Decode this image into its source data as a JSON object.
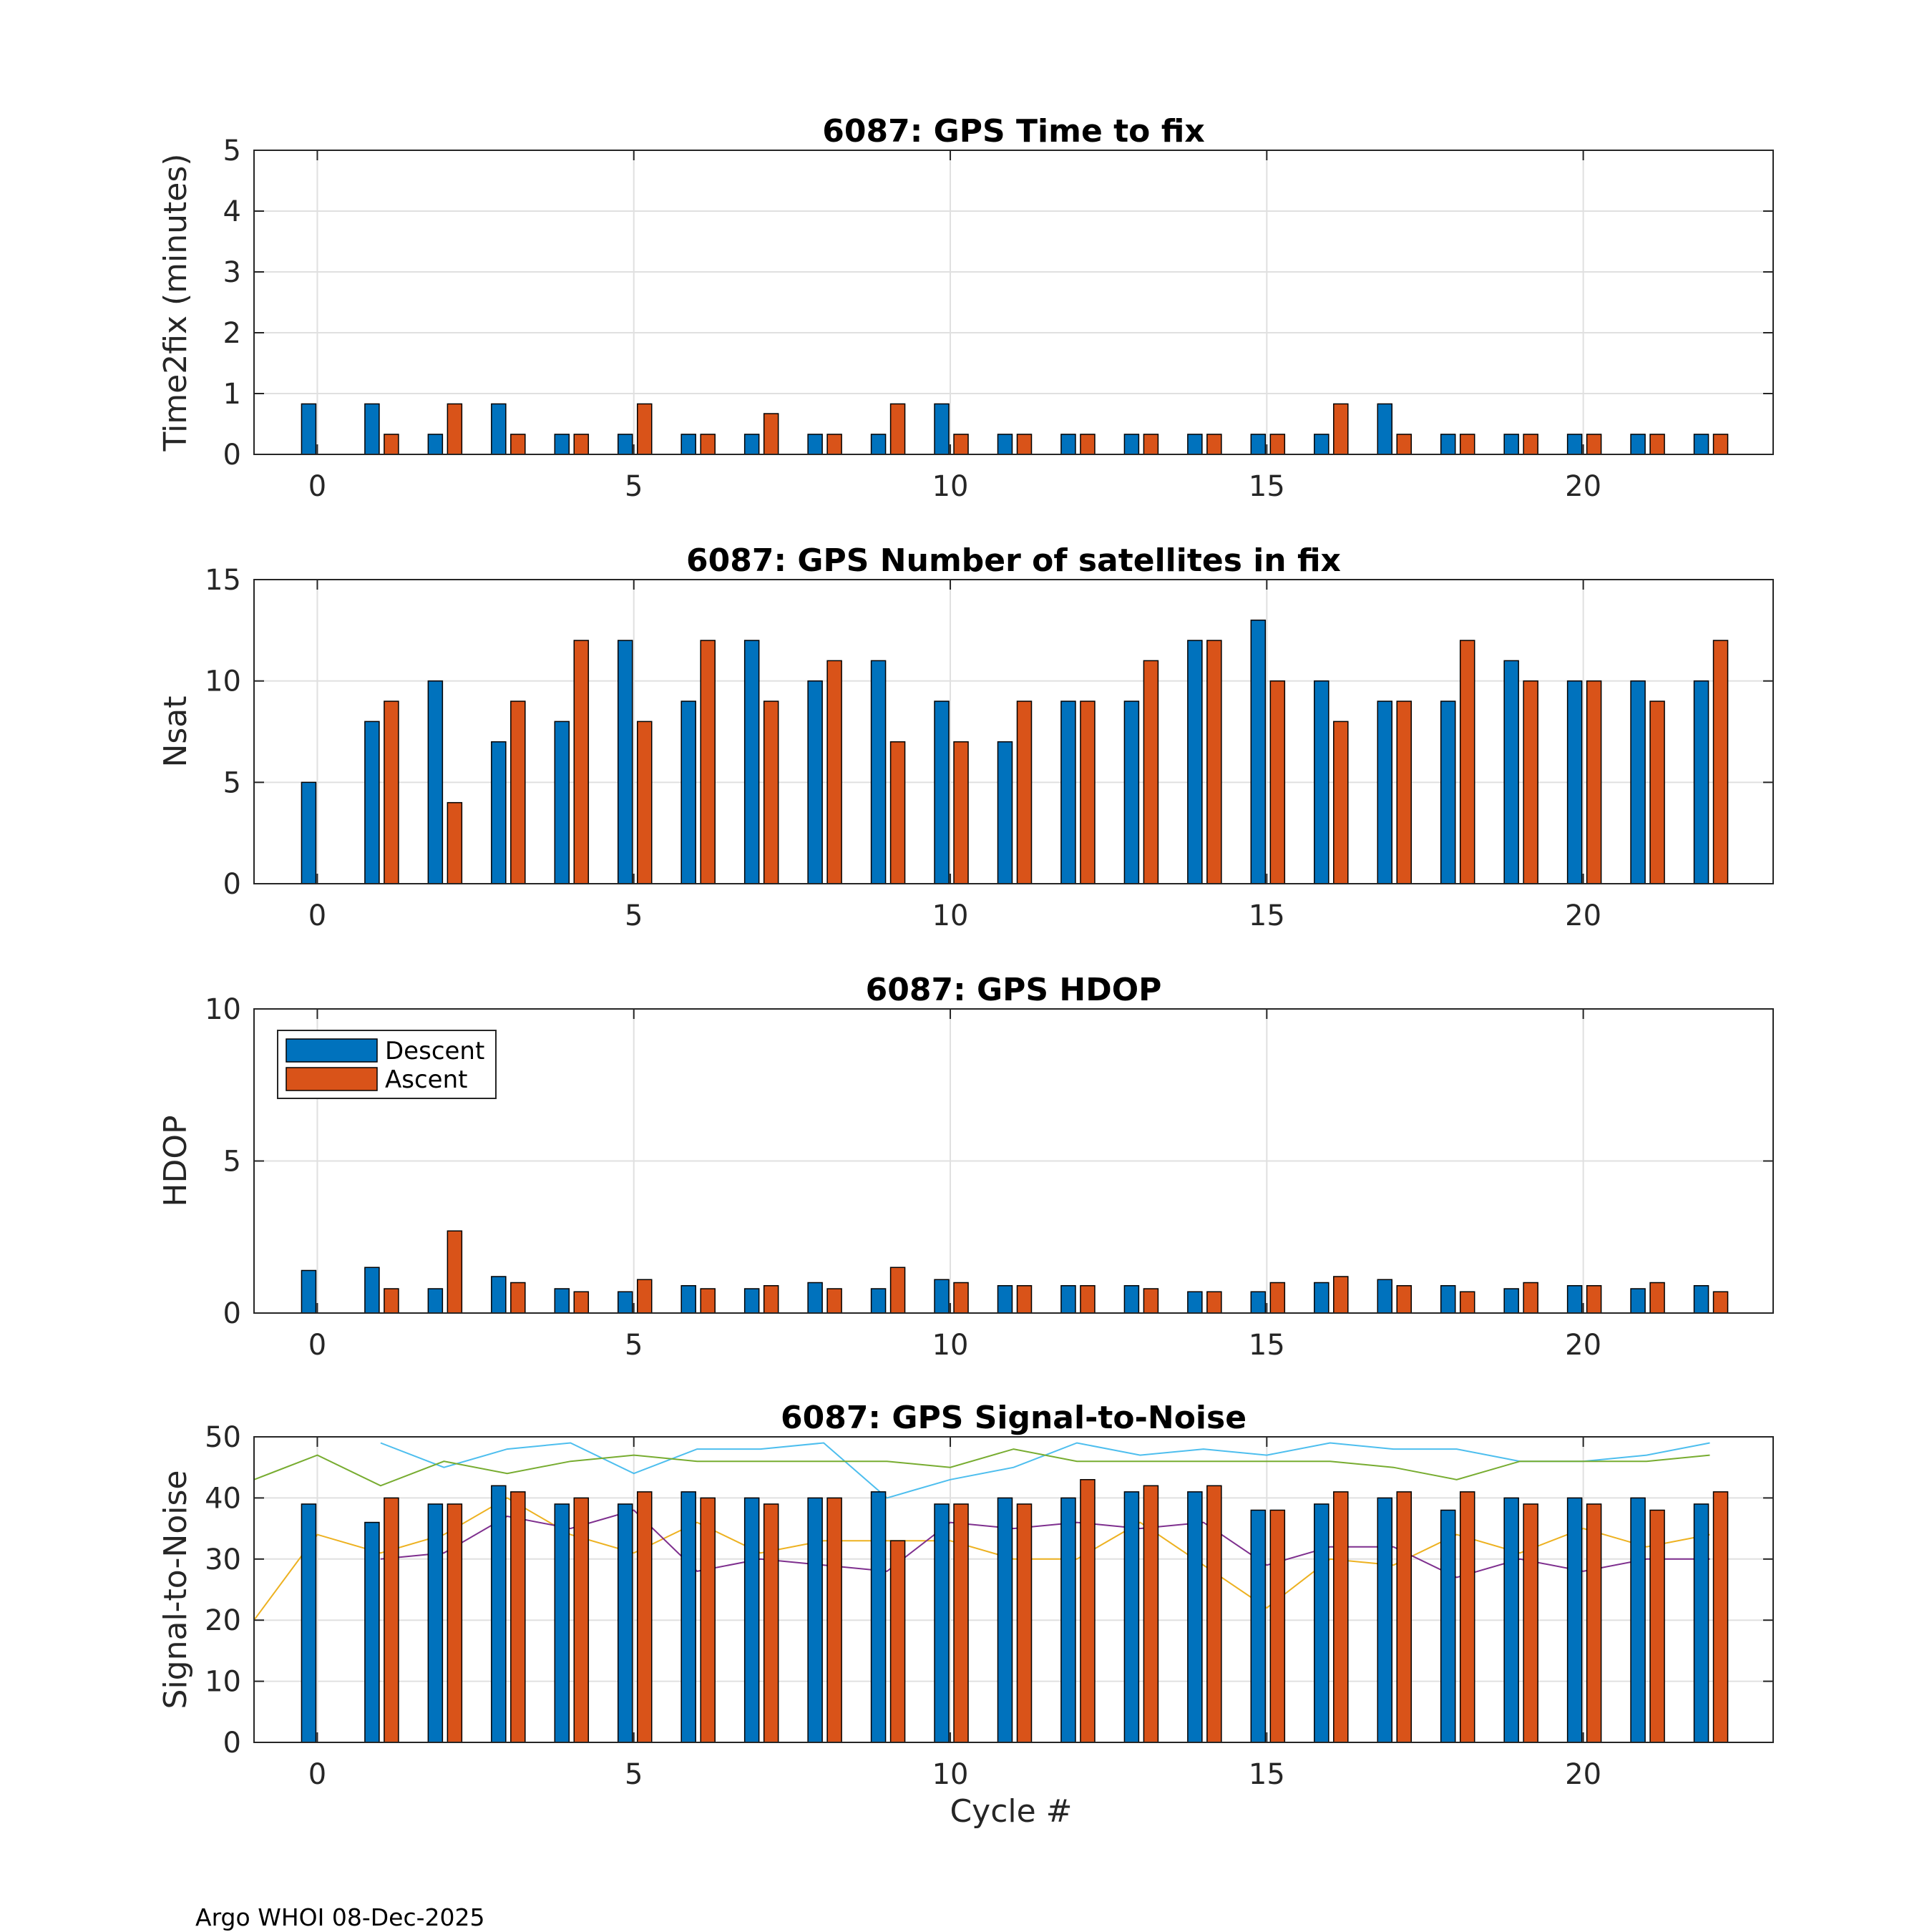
{
  "footer": "Argo WHOI 08-Dec-2025",
  "xlabel": "Cycle #",
  "colors": {
    "descent": "#0072BD",
    "ascent": "#D95319",
    "grid": "#e0e0e0",
    "axis": "#262626"
  },
  "legend": {
    "descent": "Descent",
    "ascent": "Ascent"
  },
  "chart_data": [
    {
      "type": "bar",
      "title": "6087: GPS Time to fix",
      "ylabel": "Time2fix (minutes)",
      "xlim": [
        -1,
        23
      ],
      "ylim": [
        0,
        5
      ],
      "xticks": [
        0,
        5,
        10,
        15,
        20
      ],
      "yticks": [
        0,
        1,
        2,
        3,
        4,
        5
      ],
      "x": [
        0,
        1,
        2,
        3,
        4,
        5,
        6,
        7,
        8,
        9,
        10,
        11,
        12,
        13,
        14,
        15,
        16,
        17,
        18,
        19,
        20,
        21,
        22
      ],
      "series": [
        {
          "name": "Descent",
          "values": [
            0.83,
            0.83,
            0.33,
            0.83,
            0.33,
            0.33,
            0.33,
            0.33,
            0.33,
            0.33,
            0.83,
            0.33,
            0.33,
            0.33,
            0.33,
            0.33,
            0.33,
            0.83,
            0.33,
            0.33,
            0.33,
            0.33,
            0.33
          ]
        },
        {
          "name": "Ascent",
          "values": [
            null,
            0.33,
            0.83,
            0.33,
            0.33,
            0.83,
            0.33,
            0.67,
            0.33,
            0.83,
            0.33,
            0.33,
            0.33,
            0.33,
            0.33,
            0.33,
            0.83,
            0.33,
            0.33,
            0.33,
            0.33,
            0.33,
            0.33
          ]
        }
      ]
    },
    {
      "type": "bar",
      "title": "6087: GPS Number of satellites in fix",
      "ylabel": "Nsat",
      "xlim": [
        -1,
        23
      ],
      "ylim": [
        0,
        15
      ],
      "xticks": [
        0,
        5,
        10,
        15,
        20
      ],
      "yticks": [
        0,
        5,
        10,
        15
      ],
      "x": [
        0,
        1,
        2,
        3,
        4,
        5,
        6,
        7,
        8,
        9,
        10,
        11,
        12,
        13,
        14,
        15,
        16,
        17,
        18,
        19,
        20,
        21,
        22
      ],
      "series": [
        {
          "name": "Descent",
          "values": [
            5,
            8,
            10,
            7,
            8,
            12,
            9,
            12,
            10,
            11,
            9,
            7,
            9,
            9,
            12,
            13,
            10,
            9,
            9,
            11,
            10,
            10,
            10
          ]
        },
        {
          "name": "Ascent",
          "values": [
            null,
            9,
            4,
            9,
            12,
            8,
            12,
            9,
            11,
            7,
            7,
            9,
            9,
            11,
            12,
            10,
            8,
            9,
            12,
            10,
            10,
            9,
            12
          ]
        }
      ]
    },
    {
      "type": "bar",
      "title": "6087: GPS HDOP",
      "ylabel": "HDOP",
      "xlim": [
        -1,
        23
      ],
      "ylim": [
        0,
        10
      ],
      "xticks": [
        0,
        5,
        10,
        15,
        20
      ],
      "yticks": [
        0,
        5,
        10
      ],
      "legend_location": "top-left",
      "x": [
        0,
        1,
        2,
        3,
        4,
        5,
        6,
        7,
        8,
        9,
        10,
        11,
        12,
        13,
        14,
        15,
        16,
        17,
        18,
        19,
        20,
        21,
        22
      ],
      "series": [
        {
          "name": "Descent",
          "values": [
            1.4,
            1.5,
            0.8,
            1.2,
            0.8,
            0.7,
            0.9,
            0.8,
            1.0,
            0.8,
            1.1,
            0.9,
            0.9,
            0.9,
            0.7,
            0.7,
            1.0,
            1.1,
            0.9,
            0.8,
            0.9,
            0.8,
            0.9
          ]
        },
        {
          "name": "Ascent",
          "values": [
            null,
            0.8,
            2.7,
            1.0,
            0.7,
            1.1,
            0.8,
            0.9,
            0.8,
            1.5,
            1.0,
            0.9,
            0.9,
            0.8,
            0.7,
            1.0,
            1.2,
            0.9,
            0.7,
            1.0,
            0.9,
            1.0,
            0.7
          ]
        }
      ]
    },
    {
      "type": "bar",
      "title": "6087: GPS Signal-to-Noise",
      "ylabel": "Signal-to-Noise",
      "xlim": [
        -1,
        23
      ],
      "ylim": [
        0,
        50
      ],
      "xticks": [
        0,
        5,
        10,
        15,
        20
      ],
      "yticks": [
        0,
        10,
        20,
        30,
        40,
        50
      ],
      "x": [
        0,
        1,
        2,
        3,
        4,
        5,
        6,
        7,
        8,
        9,
        10,
        11,
        12,
        13,
        14,
        15,
        16,
        17,
        18,
        19,
        20,
        21,
        22
      ],
      "series": [
        {
          "name": "Descent",
          "values": [
            39,
            36,
            39,
            42,
            39,
            39,
            41,
            40,
            40,
            41,
            39,
            40,
            40,
            41,
            41,
            38,
            39,
            40,
            38,
            40,
            40,
            40,
            39
          ]
        },
        {
          "name": "Ascent",
          "values": [
            null,
            40,
            39,
            41,
            40,
            41,
            40,
            39,
            40,
            33,
            39,
            39,
            43,
            42,
            42,
            38,
            41,
            41,
            41,
            39,
            39,
            38,
            41
          ]
        }
      ],
      "lines": [
        {
          "color": "#4DBEEE",
          "x": [
            1,
            2,
            3,
            4,
            5,
            6,
            7,
            8,
            9,
            10,
            11,
            12,
            13,
            14,
            15,
            16,
            17,
            18,
            19,
            20,
            21,
            22
          ],
          "values": [
            49,
            45,
            48,
            49,
            44,
            48,
            48,
            49,
            40,
            43,
            45,
            49,
            47,
            48,
            47,
            49,
            48,
            48,
            46,
            46,
            47,
            49
          ]
        },
        {
          "color": "#77AC30",
          "x": [
            -1,
            0,
            1,
            2,
            3,
            4,
            5,
            6,
            7,
            8,
            9,
            10,
            11,
            12,
            13,
            14,
            15,
            16,
            17,
            18,
            19,
            20,
            21,
            22
          ],
          "values": [
            43,
            47,
            42,
            46,
            44,
            46,
            47,
            46,
            46,
            46,
            46,
            45,
            48,
            46,
            46,
            46,
            46,
            46,
            45,
            43,
            46,
            46,
            46,
            47
          ]
        },
        {
          "color": "#EDB120",
          "x": [
            -1,
            0,
            1,
            2,
            3,
            4,
            5,
            6,
            7,
            8,
            9,
            10,
            11,
            12,
            13,
            14,
            15,
            16,
            17,
            18,
            19,
            20,
            21,
            22
          ],
          "values": [
            20,
            34,
            31,
            34,
            40,
            34,
            31,
            36,
            31,
            33,
            33,
            33,
            30,
            30,
            36,
            29,
            22,
            30,
            29,
            34,
            31,
            35,
            32,
            34
          ]
        },
        {
          "color": "#7E2F8E",
          "x": [
            1,
            2,
            3,
            4,
            5,
            6,
            7,
            8,
            9,
            10,
            11,
            12,
            13,
            14,
            15,
            16,
            17,
            18,
            19,
            20,
            21,
            22
          ],
          "values": [
            30,
            31,
            37,
            35,
            38,
            28,
            30,
            29,
            28,
            36,
            35,
            36,
            35,
            36,
            29,
            32,
            32,
            27,
            30,
            28,
            30,
            30
          ]
        }
      ]
    }
  ]
}
